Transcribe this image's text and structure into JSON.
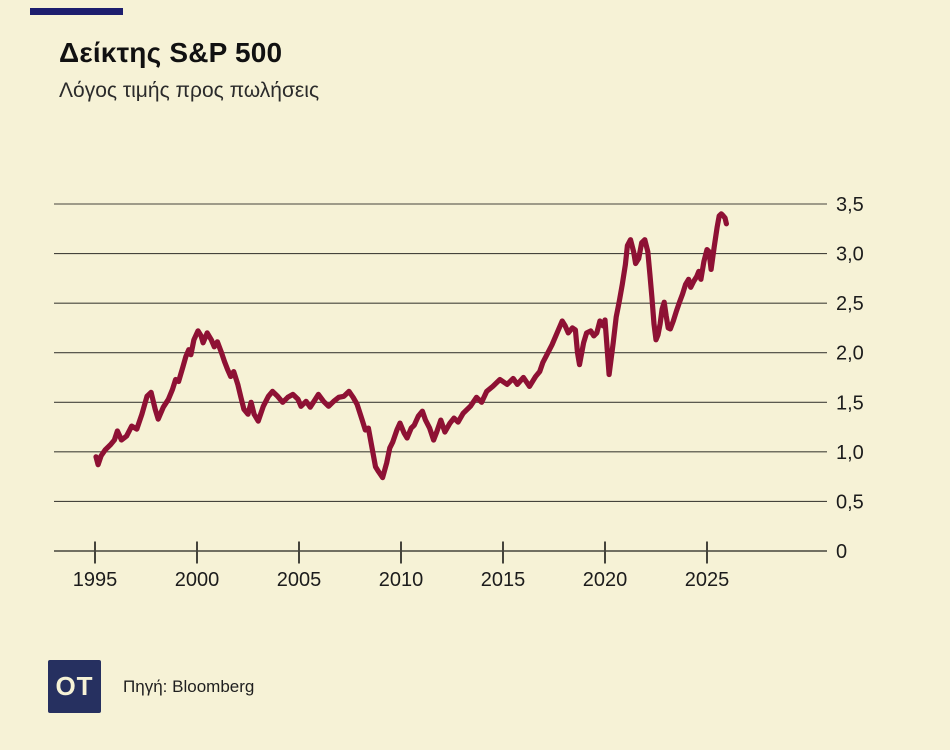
{
  "page": {
    "title": "Δείκτης S&P 500",
    "subtitle": "Λόγος τιμής προς πωλήσεις",
    "source_label": "Πηγή: Bloomberg",
    "logo_text": "OT"
  },
  "colors": {
    "background": "#f6f2d6",
    "accent_bar": "#1d1e6e",
    "logo_background": "#263060",
    "logo_text": "#f6f2d6",
    "series_line": "#8e1134",
    "grid": "#45443c",
    "text": "#1c1c1c"
  },
  "chart_data": {
    "type": "line",
    "title": "Δείκτης S&P 500",
    "subtitle": "Λόγος τιμής προς πωλήσεις",
    "xlabel": "",
    "ylabel": "",
    "xlim": [
      1993,
      2031
    ],
    "ylim": [
      0,
      3.5
    ],
    "xticks": [
      1995,
      2000,
      2005,
      2010,
      2015,
      2020,
      2025
    ],
    "yticks": [
      0,
      0.5,
      1.0,
      1.5,
      2.0,
      2.5,
      3.0,
      3.5
    ],
    "ytick_labels": [
      "0",
      "0,5",
      "1,0",
      "1,5",
      "2,0",
      "2,5",
      "3,0",
      "3,5"
    ],
    "grid": "horizontal",
    "legend": "none",
    "series_name": "S&P 500 price-to-sales ratio",
    "points": [
      [
        1995.05,
        0.95
      ],
      [
        1995.15,
        0.87
      ],
      [
        1995.3,
        0.96
      ],
      [
        1995.5,
        1.02
      ],
      [
        1995.75,
        1.07
      ],
      [
        1995.95,
        1.12
      ],
      [
        1996.1,
        1.21
      ],
      [
        1996.3,
        1.12
      ],
      [
        1996.55,
        1.16
      ],
      [
        1996.8,
        1.26
      ],
      [
        1997.05,
        1.23
      ],
      [
        1997.3,
        1.38
      ],
      [
        1997.55,
        1.56
      ],
      [
        1997.75,
        1.6
      ],
      [
        1997.95,
        1.43
      ],
      [
        1998.1,
        1.33
      ],
      [
        1998.35,
        1.45
      ],
      [
        1998.6,
        1.53
      ],
      [
        1998.8,
        1.63
      ],
      [
        1998.95,
        1.73
      ],
      [
        1999.1,
        1.71
      ],
      [
        1999.3,
        1.85
      ],
      [
        1999.45,
        1.96
      ],
      [
        1999.6,
        2.03
      ],
      [
        1999.7,
        1.98
      ],
      [
        1999.85,
        2.13
      ],
      [
        2000.05,
        2.22
      ],
      [
        2000.2,
        2.17
      ],
      [
        2000.3,
        2.1
      ],
      [
        2000.5,
        2.2
      ],
      [
        2000.7,
        2.13
      ],
      [
        2000.85,
        2.06
      ],
      [
        2001.0,
        2.11
      ],
      [
        2001.2,
        2.0
      ],
      [
        2001.35,
        1.91
      ],
      [
        2001.5,
        1.83
      ],
      [
        2001.65,
        1.76
      ],
      [
        2001.8,
        1.81
      ],
      [
        2002.0,
        1.68
      ],
      [
        2002.15,
        1.55
      ],
      [
        2002.3,
        1.43
      ],
      [
        2002.5,
        1.38
      ],
      [
        2002.65,
        1.5
      ],
      [
        2002.8,
        1.38
      ],
      [
        2003.0,
        1.31
      ],
      [
        2003.25,
        1.46
      ],
      [
        2003.5,
        1.56
      ],
      [
        2003.7,
        1.61
      ],
      [
        2003.95,
        1.56
      ],
      [
        2004.2,
        1.5
      ],
      [
        2004.45,
        1.55
      ],
      [
        2004.7,
        1.58
      ],
      [
        2004.95,
        1.53
      ],
      [
        2005.1,
        1.46
      ],
      [
        2005.35,
        1.51
      ],
      [
        2005.55,
        1.45
      ],
      [
        2005.8,
        1.53
      ],
      [
        2005.95,
        1.58
      ],
      [
        2006.2,
        1.51
      ],
      [
        2006.45,
        1.46
      ],
      [
        2006.7,
        1.51
      ],
      [
        2006.95,
        1.55
      ],
      [
        2007.2,
        1.56
      ],
      [
        2007.45,
        1.61
      ],
      [
        2007.65,
        1.55
      ],
      [
        2007.85,
        1.48
      ],
      [
        2008.1,
        1.32
      ],
      [
        2008.25,
        1.22
      ],
      [
        2008.4,
        1.24
      ],
      [
        2008.6,
        1.02
      ],
      [
        2008.75,
        0.85
      ],
      [
        2008.9,
        0.8
      ],
      [
        2009.1,
        0.74
      ],
      [
        2009.3,
        0.89
      ],
      [
        2009.45,
        1.04
      ],
      [
        2009.6,
        1.1
      ],
      [
        2009.8,
        1.22
      ],
      [
        2009.95,
        1.29
      ],
      [
        2010.15,
        1.19
      ],
      [
        2010.3,
        1.14
      ],
      [
        2010.5,
        1.24
      ],
      [
        2010.65,
        1.27
      ],
      [
        2010.85,
        1.36
      ],
      [
        2011.05,
        1.41
      ],
      [
        2011.2,
        1.32
      ],
      [
        2011.4,
        1.24
      ],
      [
        2011.6,
        1.12
      ],
      [
        2011.75,
        1.2
      ],
      [
        2011.95,
        1.32
      ],
      [
        2012.15,
        1.2
      ],
      [
        2012.4,
        1.29
      ],
      [
        2012.6,
        1.34
      ],
      [
        2012.8,
        1.3
      ],
      [
        2013.05,
        1.39
      ],
      [
        2013.4,
        1.46
      ],
      [
        2013.7,
        1.55
      ],
      [
        2013.95,
        1.5
      ],
      [
        2014.2,
        1.61
      ],
      [
        2014.5,
        1.66
      ],
      [
        2014.85,
        1.73
      ],
      [
        2015.2,
        1.68
      ],
      [
        2015.5,
        1.74
      ],
      [
        2015.7,
        1.68
      ],
      [
        2016.0,
        1.75
      ],
      [
        2016.3,
        1.66
      ],
      [
        2016.6,
        1.76
      ],
      [
        2016.8,
        1.81
      ],
      [
        2016.95,
        1.9
      ],
      [
        2017.15,
        1.98
      ],
      [
        2017.4,
        2.08
      ],
      [
        2017.65,
        2.2
      ],
      [
        2017.9,
        2.32
      ],
      [
        2018.05,
        2.27
      ],
      [
        2018.2,
        2.2
      ],
      [
        2018.4,
        2.25
      ],
      [
        2018.55,
        2.23
      ],
      [
        2018.65,
        2.0
      ],
      [
        2018.75,
        1.88
      ],
      [
        2018.95,
        2.1
      ],
      [
        2019.1,
        2.2
      ],
      [
        2019.3,
        2.22
      ],
      [
        2019.45,
        2.17
      ],
      [
        2019.6,
        2.2
      ],
      [
        2019.75,
        2.32
      ],
      [
        2019.9,
        2.27
      ],
      [
        2020.0,
        2.33
      ],
      [
        2020.2,
        1.78
      ],
      [
        2020.4,
        2.1
      ],
      [
        2020.55,
        2.36
      ],
      [
        2020.7,
        2.52
      ],
      [
        2020.85,
        2.69
      ],
      [
        2021.0,
        2.89
      ],
      [
        2021.1,
        3.08
      ],
      [
        2021.25,
        3.14
      ],
      [
        2021.4,
        3.02
      ],
      [
        2021.5,
        2.9
      ],
      [
        2021.65,
        2.95
      ],
      [
        2021.8,
        3.11
      ],
      [
        2021.95,
        3.14
      ],
      [
        2022.1,
        3.02
      ],
      [
        2022.2,
        2.79
      ],
      [
        2022.3,
        2.56
      ],
      [
        2022.4,
        2.29
      ],
      [
        2022.5,
        2.13
      ],
      [
        2022.6,
        2.18
      ],
      [
        2022.7,
        2.29
      ],
      [
        2022.8,
        2.44
      ],
      [
        2022.9,
        2.51
      ],
      [
        2023.0,
        2.37
      ],
      [
        2023.1,
        2.25
      ],
      [
        2023.2,
        2.24
      ],
      [
        2023.35,
        2.32
      ],
      [
        2023.5,
        2.42
      ],
      [
        2023.65,
        2.51
      ],
      [
        2023.8,
        2.59
      ],
      [
        2023.95,
        2.69
      ],
      [
        2024.1,
        2.74
      ],
      [
        2024.2,
        2.66
      ],
      [
        2024.35,
        2.72
      ],
      [
        2024.5,
        2.77
      ],
      [
        2024.6,
        2.82
      ],
      [
        2024.7,
        2.74
      ],
      [
        2024.85,
        2.92
      ],
      [
        2025.0,
        3.04
      ],
      [
        2025.1,
        3.02
      ],
      [
        2025.2,
        2.84
      ],
      [
        2025.35,
        3.06
      ],
      [
        2025.5,
        3.27
      ],
      [
        2025.6,
        3.38
      ],
      [
        2025.7,
        3.4
      ],
      [
        2025.8,
        3.38
      ],
      [
        2025.88,
        3.36
      ],
      [
        2025.95,
        3.3
      ]
    ]
  }
}
